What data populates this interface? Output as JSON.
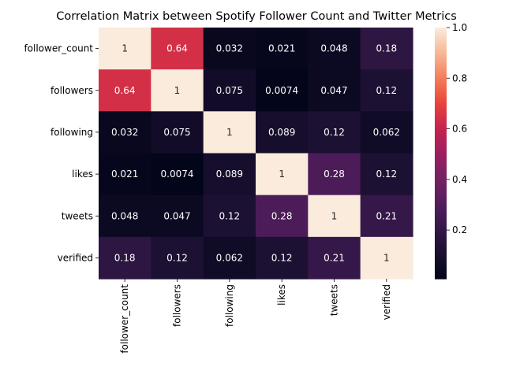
{
  "chart_data": {
    "type": "heatmap",
    "title": "Correlation Matrix between Spotify Follower Count and Twitter Metrics",
    "xlabel": "",
    "ylabel": "",
    "x_categories": [
      "follower_count",
      "followers",
      "following",
      "likes",
      "tweets",
      "verified"
    ],
    "y_categories": [
      "follower_count",
      "followers",
      "following",
      "likes",
      "tweets",
      "verified"
    ],
    "values": [
      [
        1,
        0.64,
        0.032,
        0.021,
        0.048,
        0.18
      ],
      [
        0.64,
        1,
        0.075,
        0.0074,
        0.047,
        0.12
      ],
      [
        0.032,
        0.075,
        1,
        0.089,
        0.12,
        0.062
      ],
      [
        0.021,
        0.0074,
        0.089,
        1,
        0.28,
        0.12
      ],
      [
        0.048,
        0.047,
        0.12,
        0.28,
        1,
        0.21
      ],
      [
        0.18,
        0.12,
        0.062,
        0.12,
        0.21,
        1
      ]
    ],
    "cell_labels": [
      [
        "1",
        "0.64",
        "0.032",
        "0.021",
        "0.048",
        "0.18"
      ],
      [
        "0.64",
        "1",
        "0.075",
        "0.0074",
        "0.047",
        "0.12"
      ],
      [
        "0.032",
        "0.075",
        "1",
        "0.089",
        "0.12",
        "0.062"
      ],
      [
        "0.021",
        "0.0074",
        "0.089",
        "1",
        "0.28",
        "0.12"
      ],
      [
        "0.048",
        "0.047",
        "0.12",
        "0.28",
        "1",
        "0.21"
      ],
      [
        "0.18",
        "0.12",
        "0.062",
        "0.12",
        "0.21",
        "1"
      ]
    ],
    "colorbar": {
      "range": [
        0.0074,
        1
      ],
      "ticks": [
        0.2,
        0.4,
        0.6,
        0.8,
        1.0
      ],
      "tick_labels": [
        "0.2",
        "0.4",
        "0.6",
        "0.8",
        "1.0"
      ]
    },
    "colormap": "rocket",
    "grid": false,
    "legend": "colorbar-right"
  }
}
